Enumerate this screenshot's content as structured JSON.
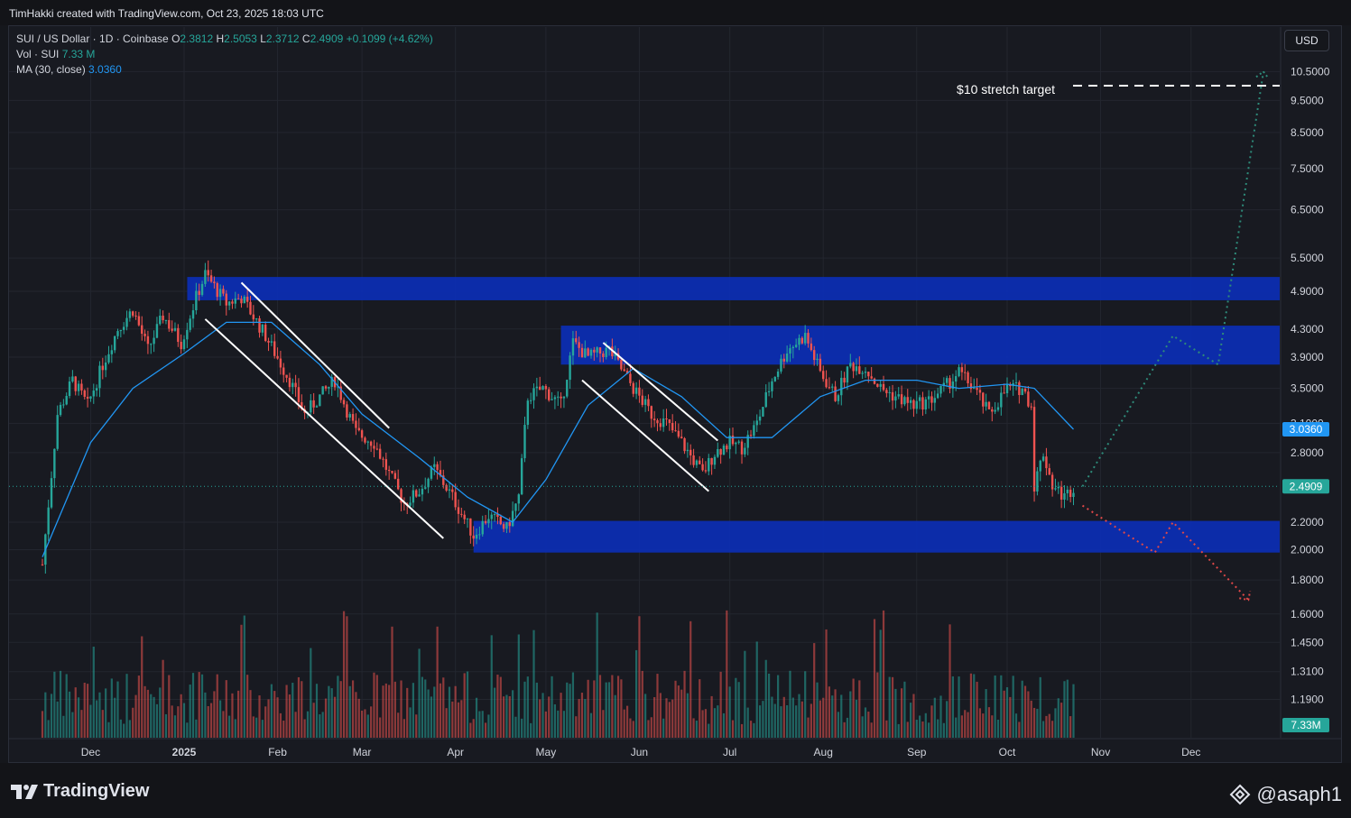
{
  "header": {
    "attribution": "TimHakki created with TradingView.com, Oct 23, 2025 18:03 UTC"
  },
  "legend": {
    "symbol": "SUI / US Dollar · 1D · Coinbase",
    "o_label": "O",
    "o_value": "2.3812",
    "h_label": "H",
    "h_value": "2.5053",
    "l_label": "L",
    "l_value": "2.3712",
    "c_label": "C",
    "c_value": "2.4909",
    "change": "+0.1099 (+4.62%)",
    "vol_label": "Vol · SUI",
    "vol_value": "7.33 M",
    "ma_label": "MA (30, close)",
    "ma_value": "3.0360"
  },
  "currency_button": "USD",
  "annotation_text": "$10 stretch target",
  "footer": {
    "brand": "TradingView",
    "watermark": "@asaph1"
  },
  "colors": {
    "up": "#26a69a",
    "down": "#ef5350",
    "ma": "#2196f3",
    "zone": "#0b2fb8",
    "bg": "#181a21",
    "grid": "#23262f"
  },
  "chart_data": {
    "type": "candlestick",
    "symbol": "SUI / US Dollar",
    "interval": "1D",
    "exchange": "Coinbase",
    "y_scale": "log",
    "y_ticks": [
      "10.5000",
      "9.5000",
      "8.5000",
      "7.5000",
      "6.5000",
      "5.5000",
      "4.9000",
      "4.3000",
      "3.9000",
      "3.5000",
      "3.1000",
      "2.8000",
      "2.2000",
      "2.0000",
      "1.8000",
      "1.6000",
      "1.4500",
      "1.3100",
      "1.1900"
    ],
    "x_ticks": [
      "Dec",
      "2025",
      "Feb",
      "Mar",
      "Apr",
      "May",
      "Jun",
      "Jul",
      "Aug",
      "Sep",
      "Oct",
      "Nov",
      "Dec"
    ],
    "price_labels": {
      "ma": "3.0360",
      "last": "2.4909",
      "volume": "7.33M"
    },
    "zones": [
      {
        "low": 4.75,
        "high": 5.15
      },
      {
        "low": 3.8,
        "high": 4.35
      },
      {
        "low": 1.98,
        "high": 2.21
      }
    ],
    "target_line": 10.0,
    "price_path": [
      [
        "2024-11-15",
        1.9
      ],
      [
        "2024-11-20",
        3.2
      ],
      [
        "2024-11-25",
        3.6
      ],
      [
        "2024-11-30",
        3.3
      ],
      [
        "2024-12-05",
        3.8
      ],
      [
        "2024-12-10",
        4.3
      ],
      [
        "2024-12-15",
        4.6
      ],
      [
        "2024-12-20",
        4.0
      ],
      [
        "2024-12-25",
        4.5
      ],
      [
        "2024-12-31",
        4.1
      ],
      [
        "2025-01-05",
        4.8
      ],
      [
        "2025-01-08",
        5.2
      ],
      [
        "2025-01-15",
        4.7
      ],
      [
        "2025-01-20",
        4.8
      ],
      [
        "2025-01-28",
        4.2
      ],
      [
        "2025-02-05",
        3.6
      ],
      [
        "2025-02-10",
        3.2
      ],
      [
        "2025-02-15",
        3.4
      ],
      [
        "2025-02-20",
        3.6
      ],
      [
        "2025-02-27",
        3.0
      ],
      [
        "2025-03-05",
        2.9
      ],
      [
        "2025-03-10",
        2.6
      ],
      [
        "2025-03-15",
        2.35
      ],
      [
        "2025-03-20",
        2.45
      ],
      [
        "2025-03-25",
        2.65
      ],
      [
        "2025-03-31",
        2.4
      ],
      [
        "2025-04-07",
        2.1
      ],
      [
        "2025-04-12",
        2.25
      ],
      [
        "2025-04-18",
        2.15
      ],
      [
        "2025-04-22",
        2.4
      ],
      [
        "2025-04-25",
        3.4
      ],
      [
        "2025-04-30",
        3.5
      ],
      [
        "2025-05-06",
        3.3
      ],
      [
        "2025-05-10",
        4.1
      ],
      [
        "2025-05-15",
        3.9
      ],
      [
        "2025-05-22",
        4.0
      ],
      [
        "2025-05-30",
        3.5
      ],
      [
        "2025-06-05",
        3.2
      ],
      [
        "2025-06-10",
        3.1
      ],
      [
        "2025-06-15",
        2.9
      ],
      [
        "2025-06-22",
        2.6
      ],
      [
        "2025-06-26",
        2.8
      ],
      [
        "2025-07-01",
        2.9
      ],
      [
        "2025-07-05",
        2.85
      ],
      [
        "2025-07-10",
        3.1
      ],
      [
        "2025-07-15",
        3.6
      ],
      [
        "2025-07-20",
        4.0
      ],
      [
        "2025-07-26",
        4.2
      ],
      [
        "2025-07-31",
        3.7
      ],
      [
        "2025-08-05",
        3.4
      ],
      [
        "2025-08-10",
        3.8
      ],
      [
        "2025-08-15",
        3.75
      ],
      [
        "2025-08-20",
        3.5
      ],
      [
        "2025-08-25",
        3.4
      ],
      [
        "2025-08-31",
        3.3
      ],
      [
        "2025-09-05",
        3.35
      ],
      [
        "2025-09-10",
        3.5
      ],
      [
        "2025-09-15",
        3.7
      ],
      [
        "2025-09-20",
        3.5
      ],
      [
        "2025-09-25",
        3.2
      ],
      [
        "2025-10-01",
        3.5
      ],
      [
        "2025-10-06",
        3.5
      ],
      [
        "2025-10-09",
        3.3
      ],
      [
        "2025-10-10",
        2.5
      ],
      [
        "2025-10-13",
        2.8
      ],
      [
        "2025-10-16",
        2.5
      ],
      [
        "2025-10-20",
        2.4
      ],
      [
        "2025-10-23",
        2.49
      ]
    ],
    "ma_path": [
      [
        "2024-11-15",
        1.95
      ],
      [
        "2024-12-01",
        2.9
      ],
      [
        "2024-12-15",
        3.5
      ],
      [
        "2025-01-01",
        3.95
      ],
      [
        "2025-01-15",
        4.4
      ],
      [
        "2025-01-30",
        4.4
      ],
      [
        "2025-02-15",
        3.8
      ],
      [
        "2025-03-01",
        3.2
      ],
      [
        "2025-03-20",
        2.75
      ],
      [
        "2025-04-05",
        2.4
      ],
      [
        "2025-04-20",
        2.2
      ],
      [
        "2025-05-01",
        2.55
      ],
      [
        "2025-05-15",
        3.3
      ],
      [
        "2025-05-30",
        3.75
      ],
      [
        "2025-06-15",
        3.4
      ],
      [
        "2025-06-30",
        2.95
      ],
      [
        "2025-07-15",
        2.95
      ],
      [
        "2025-07-31",
        3.4
      ],
      [
        "2025-08-15",
        3.6
      ],
      [
        "2025-09-01",
        3.6
      ],
      [
        "2025-09-15",
        3.5
      ],
      [
        "2025-10-01",
        3.55
      ],
      [
        "2025-10-10",
        3.5
      ],
      [
        "2025-10-23",
        3.036
      ]
    ],
    "channels": [
      {
        "upper": [
          [
            "2025-01-20",
            5.05
          ],
          [
            "2025-03-10",
            3.05
          ]
        ],
        "lower": [
          [
            "2025-01-08",
            4.45
          ],
          [
            "2025-03-28",
            2.08
          ]
        ]
      },
      {
        "upper": [
          [
            "2025-05-20",
            4.1
          ],
          [
            "2025-06-27",
            2.92
          ]
        ],
        "lower": [
          [
            "2025-05-13",
            3.6
          ],
          [
            "2025-06-24",
            2.45
          ]
        ]
      }
    ],
    "bull_projection": [
      [
        "2025-10-26",
        2.49
      ],
      [
        "2025-11-25",
        4.2
      ],
      [
        "2025-12-10",
        3.8
      ],
      [
        "2025-12-25",
        10.5
      ]
    ],
    "bear_projection": [
      [
        "2025-10-26",
        2.33
      ],
      [
        "2025-11-19",
        1.98
      ],
      [
        "2025-11-25",
        2.2
      ],
      [
        "2025-12-20",
        1.68
      ]
    ]
  }
}
